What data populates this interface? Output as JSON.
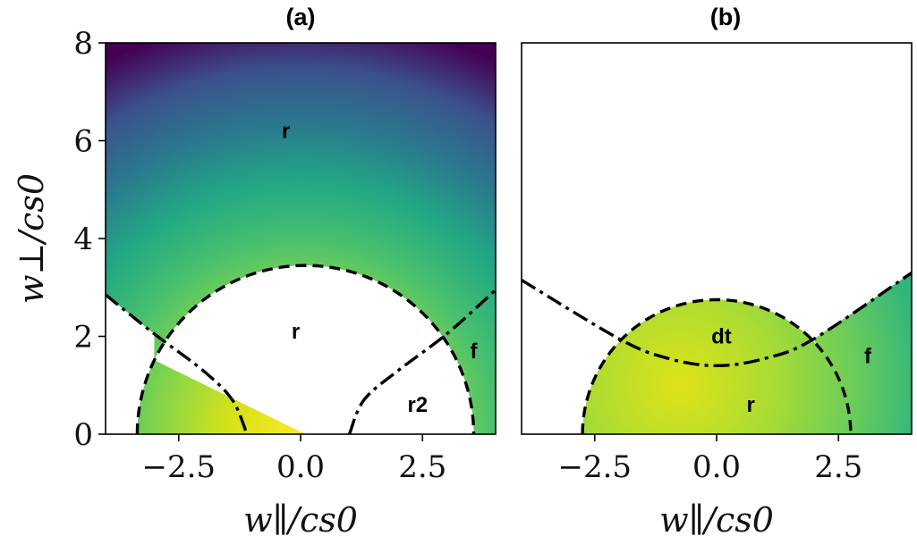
{
  "chart_data": [
    {
      "type": "heatmap",
      "title": "(a)",
      "xlabel": "w∥/cs0",
      "ylabel": "w⊥/cs0",
      "xlim": [
        -4.0,
        4.0
      ],
      "ylim": [
        0,
        8
      ],
      "xticks": [
        "−2.5",
        "0.0",
        "2.5"
      ],
      "xtick_values": [
        -2.5,
        0.0,
        2.5
      ],
      "yticks": [
        "0",
        "2",
        "4",
        "6",
        "8"
      ],
      "ytick_values": [
        0,
        2,
        4,
        6,
        8
      ],
      "colormap": "viridis",
      "grid": false,
      "curves": [
        {
          "style": "dashed",
          "shape": "semicircle",
          "center": [
            0.1,
            0
          ],
          "radius": 3.45
        },
        {
          "style": "dashdot",
          "shape": "branch-left",
          "points": [
            [
              -4.0,
              2.85
            ],
            [
              -3.0,
              2.05
            ],
            [
              -2.0,
              1.3
            ],
            [
              -1.4,
              0.7
            ],
            [
              -1.1,
              0
            ]
          ]
        },
        {
          "style": "dashdot",
          "shape": "branch-right",
          "points": [
            [
              1.0,
              0
            ],
            [
              1.3,
              0.7
            ],
            [
              2.0,
              1.3
            ],
            [
              3.0,
              2.05
            ],
            [
              4.0,
              2.95
            ]
          ]
        }
      ],
      "regions": [
        {
          "label": "r",
          "x": -0.3,
          "y": 6.2
        },
        {
          "label": "r",
          "x": -0.1,
          "y": 2.1
        },
        {
          "label": "f",
          "x": 3.55,
          "y": 1.7
        },
        {
          "label": "r2",
          "x": 2.4,
          "y": 0.6
        }
      ]
    },
    {
      "type": "heatmap",
      "title": "(b)",
      "xlabel": "w∥/cs0",
      "ylabel": "",
      "xlim": [
        -4.0,
        4.0
      ],
      "ylim": [
        0,
        8
      ],
      "xticks": [
        "−2.5",
        "0.0",
        "2.5"
      ],
      "xtick_values": [
        -2.5,
        0.0,
        2.5
      ],
      "colormap": "viridis",
      "grid": false,
      "curves": [
        {
          "style": "dashed",
          "shape": "semicircle",
          "center": [
            0.0,
            0
          ],
          "radius": 2.75
        },
        {
          "style": "dashdot",
          "shape": "parabola",
          "points": [
            [
              -4.0,
              3.15
            ],
            [
              -2.0,
              1.95
            ],
            [
              -1.0,
              1.55
            ],
            [
              0.0,
              1.4
            ],
            [
              1.0,
              1.55
            ],
            [
              2.0,
              1.95
            ],
            [
              4.0,
              3.3
            ]
          ]
        }
      ],
      "regions": [
        {
          "label": "dt",
          "x": 0.1,
          "y": 2.0
        },
        {
          "label": "f",
          "x": 3.1,
          "y": 1.6
        },
        {
          "label": "r",
          "x": 0.7,
          "y": 0.6
        }
      ]
    }
  ]
}
